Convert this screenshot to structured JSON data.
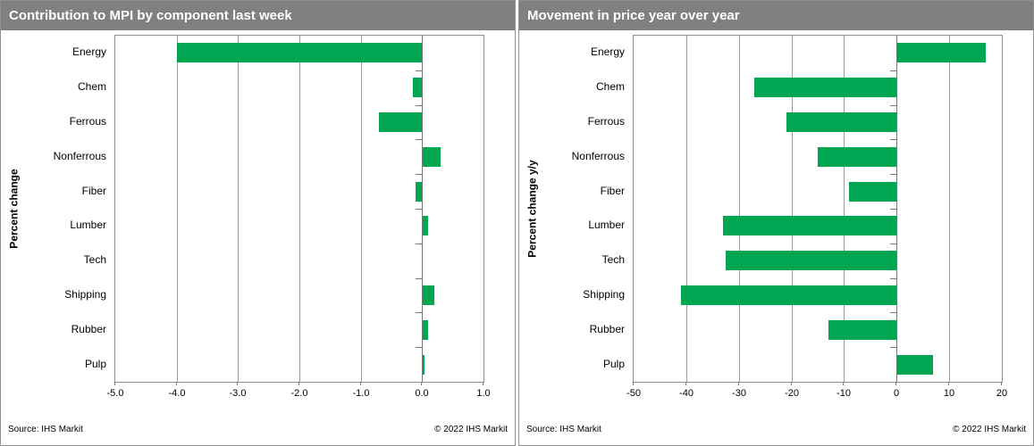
{
  "colors": {
    "bar_green": "#00a651",
    "header_bg": "#7f8180",
    "frame_gray": "#8f8f8f",
    "grid_gray": "#9b9b9b"
  },
  "chart_data": [
    {
      "type": "bar",
      "orientation": "horizontal",
      "title": "Contribution to MPI by component last week",
      "ylabel": "Percent change",
      "xlabel": "",
      "categories": [
        "Energy",
        "Chem",
        "Ferrous",
        "Nonferrous",
        "Fiber",
        "Lumber",
        "Tech",
        "Shipping",
        "Rubber",
        "Pulp"
      ],
      "values": [
        -4.0,
        -0.15,
        -0.7,
        0.3,
        -0.1,
        0.1,
        0.0,
        0.2,
        0.1,
        0.05
      ],
      "xlim": [
        -5.0,
        1.0
      ],
      "xticks": [
        -5,
        -4,
        -3,
        -2,
        -1,
        0,
        1
      ],
      "xtick_labels": [
        "-5.0",
        "-4.0",
        "-3.0",
        "-2.0",
        "-1.0",
        "0.0",
        "1.0"
      ],
      "grid": true,
      "legend": false,
      "bar_color": "#00a651",
      "source": "Source:  IHS Markit",
      "copyright": "© 2022  IHS Markit"
    },
    {
      "type": "bar",
      "orientation": "horizontal",
      "title": "Movement in price year over year",
      "ylabel": "Percent change y/y",
      "xlabel": "",
      "categories": [
        "Energy",
        "Chem",
        "Ferrous",
        "Nonferrous",
        "Fiber",
        "Lumber",
        "Tech",
        "Shipping",
        "Rubber",
        "Pulp"
      ],
      "values": [
        17,
        -27,
        -21,
        -15,
        -9,
        -33,
        -32.5,
        -41,
        -13,
        7
      ],
      "xlim": [
        -50,
        20
      ],
      "xticks": [
        -50,
        -40,
        -30,
        -20,
        -10,
        0,
        10,
        20
      ],
      "xtick_labels": [
        "-50",
        "-40",
        "-30",
        "-20",
        "-10",
        "0",
        "10",
        "20"
      ],
      "grid": true,
      "legend": false,
      "bar_color": "#00a651",
      "source": "Source:  IHS Markit",
      "copyright": "© 2022  IHS Markit"
    }
  ]
}
